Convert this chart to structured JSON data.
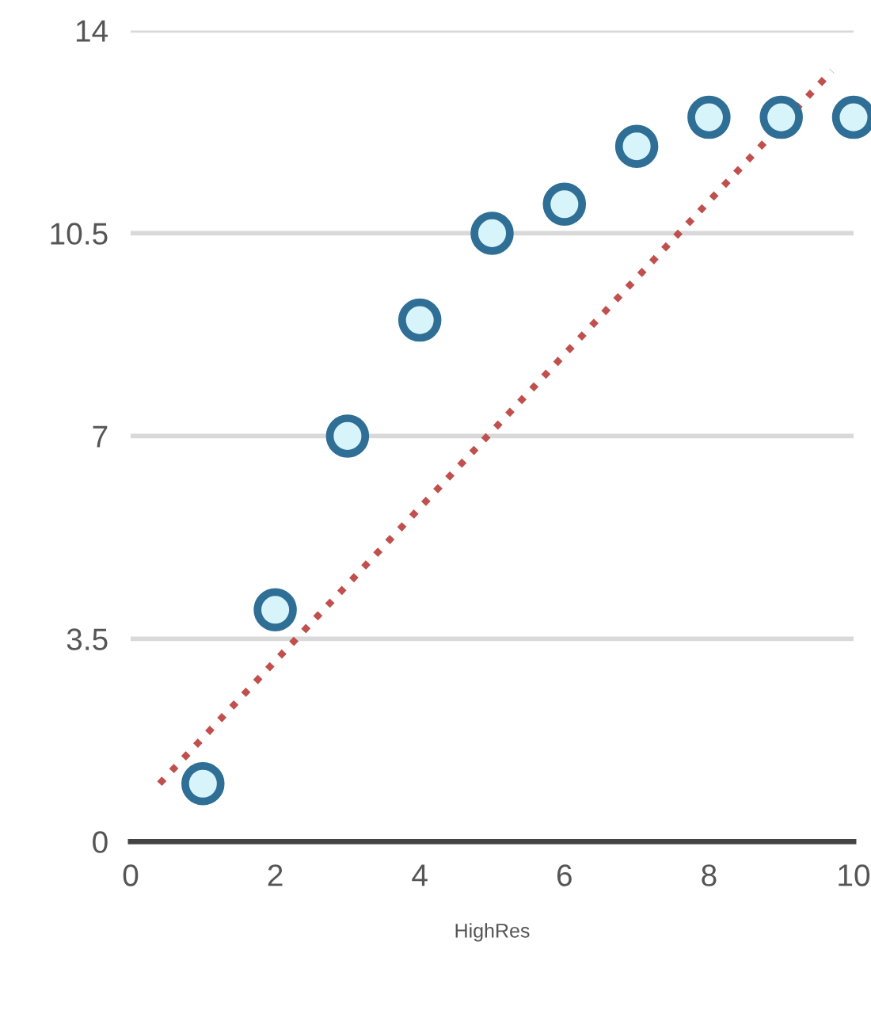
{
  "chart_data": {
    "type": "scatter",
    "xlabel": "HighRes",
    "series": [
      {
        "color": "#2f6f96",
        "marker": "circle",
        "x": [
          1,
          2,
          3,
          4,
          5,
          6,
          7,
          8,
          9,
          10
        ],
        "values": [
          1.0,
          4.0,
          7.0,
          9.0,
          10.5,
          11.0,
          12.0,
          12.5,
          12.5,
          12.5
        ]
      },
      {
        "type": "line",
        "color": "#c0504d",
        "line_style": "dotted",
        "marker": "none",
        "x": [
          0.4,
          9.7
        ],
        "values": [
          1.0,
          13.3
        ]
      }
    ],
    "xlim": [
      0,
      10
    ],
    "ylim": [
      0,
      14
    ],
    "xticks": [
      0,
      2,
      4,
      6,
      8,
      10
    ],
    "yticks": [
      0,
      3.5,
      7,
      10.5,
      14
    ],
    "grid": "y",
    "legend": false
  }
}
